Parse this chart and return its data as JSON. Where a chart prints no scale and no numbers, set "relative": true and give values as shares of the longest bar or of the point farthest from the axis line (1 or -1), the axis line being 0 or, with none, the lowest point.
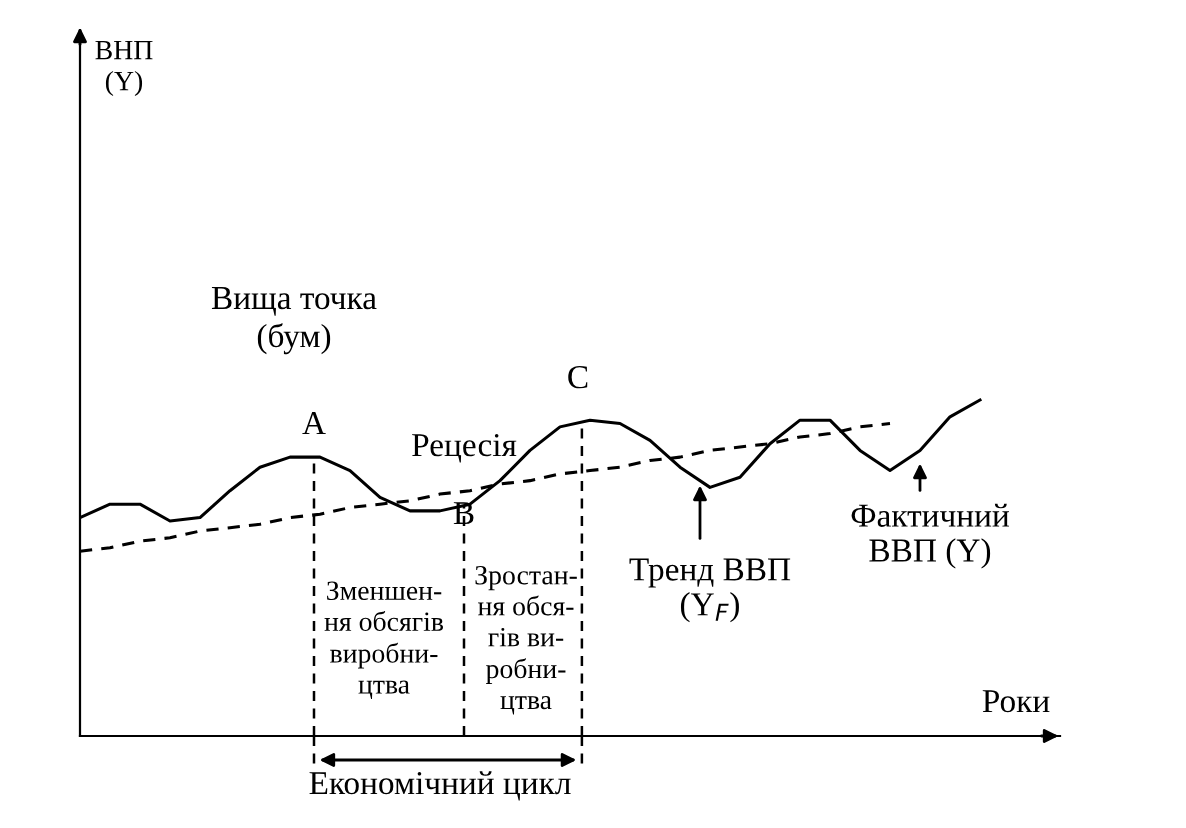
{
  "chart_data": {
    "type": "line",
    "relative": true,
    "xlabel": "Роки",
    "categories": [
      null,
      null,
      null,
      null,
      null,
      null,
      null,
      null,
      null,
      null,
      null,
      null,
      null,
      null,
      null,
      null,
      null,
      null,
      null,
      null,
      null,
      null,
      null,
      null,
      null,
      null,
      null,
      null,
      null,
      null,
      null
    ],
    "series": [
      {
        "color": "#000000",
        "line_style": "solid",
        "values": [
          0.65,
          0.69,
          0.69,
          0.64,
          0.65,
          0.73,
          0.8,
          0.83,
          0.83,
          0.79,
          0.71,
          0.67,
          0.67,
          0.69,
          0.76,
          0.85,
          0.92,
          0.94,
          0.93,
          0.88,
          0.8,
          0.74,
          0.77,
          0.87,
          0.94,
          0.94,
          0.85,
          0.79,
          0.85,
          0.95,
          1
        ]
      },
      {
        "color": "#000000",
        "line_style": "dashed",
        "values": [
          0.55,
          0.56,
          0.58,
          0.59,
          0.61,
          0.62,
          0.63,
          0.65,
          0.66,
          0.68,
          0.69,
          0.7,
          0.72,
          0.73,
          0.75,
          0.76,
          0.78,
          0.79,
          0.8,
          0.82,
          0.83,
          0.85,
          0.86,
          0.87,
          0.89,
          0.9,
          0.92,
          0.93,
          null,
          null,
          null
        ]
      }
    ],
    "annotations": [
      "Вища точка\n(бум)",
      "Рецесія",
      "Зменшен-\nня обсягів\nвиробни-\nцтва",
      "Зростан-\nня обся-\nгів ви-\nробни-\nцтва",
      "Тренд ВВП\n(Y$_{F}$)",
      "Фактичний\nВВП (Y)",
      "Економічний цикл",
      "ВНП\n(Y)",
      "A",
      "B",
      "C"
    ]
  }
}
